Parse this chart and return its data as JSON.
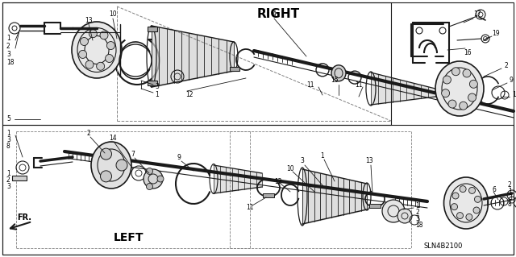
{
  "bg_color": "#ffffff",
  "line_color": "#1a1a1a",
  "text_color": "#000000",
  "right_label": "RIGHT",
  "left_label": "LEFT",
  "fr_label": "FR.",
  "part_number": "SLN4B2100",
  "figsize": [
    6.4,
    3.19
  ],
  "dpi": 100
}
